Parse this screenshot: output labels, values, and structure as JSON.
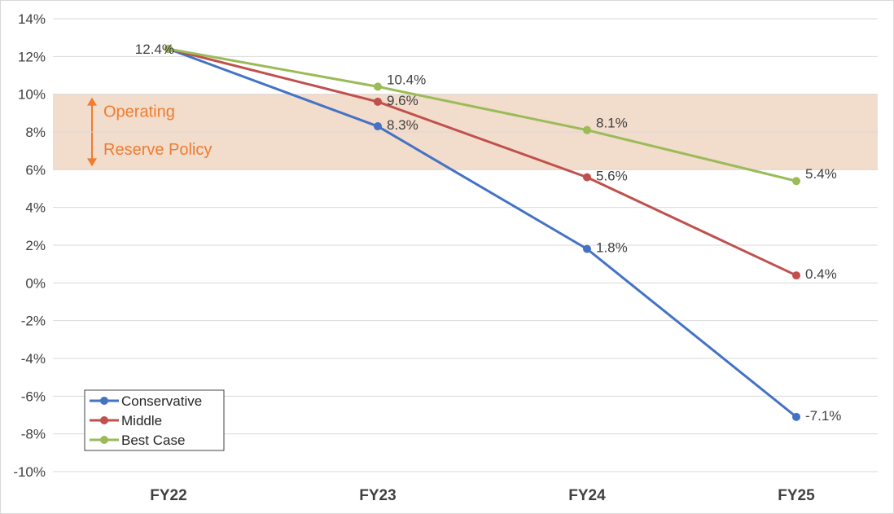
{
  "chart_data": {
    "type": "line",
    "categories": [
      "FY22",
      "FY23",
      "FY24",
      "FY25"
    ],
    "series": [
      {
        "name": "Conservative",
        "color": "#4472C4",
        "values": [
          12.4,
          8.3,
          1.8,
          -7.1
        ],
        "labels": [
          "12.4%",
          "8.3%",
          "1.8%",
          "-7.1%"
        ]
      },
      {
        "name": "Middle",
        "color": "#C0504D",
        "values": [
          12.4,
          9.6,
          5.6,
          0.4
        ],
        "labels": [
          "",
          "9.6%",
          "5.6%",
          "0.4%"
        ]
      },
      {
        "name": "Best Case",
        "color": "#9BBB59",
        "values": [
          12.4,
          10.4,
          8.1,
          5.4
        ],
        "labels": [
          "",
          "10.4%",
          "8.1%",
          "5.4%"
        ]
      }
    ],
    "ylim": [
      -10,
      14
    ],
    "yticks": [
      14,
      12,
      10,
      8,
      6,
      4,
      2,
      0,
      -2,
      -4,
      -6,
      -8,
      -10
    ],
    "ytick_labels": [
      "14%",
      "12%",
      "10%",
      "8%",
      "6%",
      "4%",
      "2%",
      "0%",
      "-2%",
      "-4%",
      "-6%",
      "-8%",
      "-10%"
    ],
    "grid": true,
    "legend_position": "bottom-left",
    "band": {
      "from": 6,
      "to": 10,
      "color": "#F2DCCB",
      "arrow_color": "#ED7D31",
      "label_line1": "Operating",
      "label_line2": "Reserve Policy"
    }
  }
}
